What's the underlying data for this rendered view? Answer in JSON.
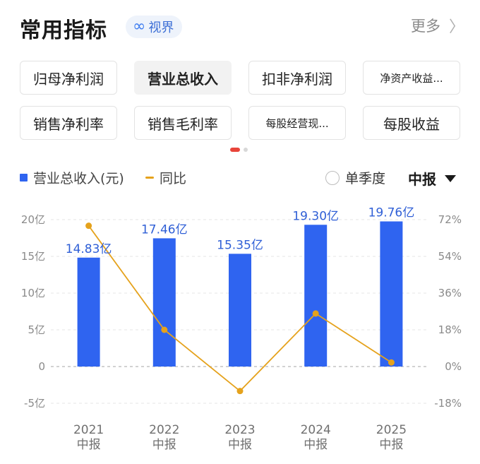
{
  "header": {
    "title": "常用指标",
    "vision_icon": "infinity-icon",
    "vision_symbol": "∞",
    "vision_label": "视界",
    "more_label": "更多",
    "more_chevron": "〉"
  },
  "metrics": {
    "row1": [
      "归母净利润",
      "营业总收入",
      "扣非净利润",
      "净资产收益..."
    ],
    "row2": [
      "销售净利率",
      "销售毛利率",
      "每股经营现...",
      "每股收益"
    ],
    "active": "营业总收入"
  },
  "legend": {
    "bar_label": "营业总收入(元)",
    "line_label": "同比",
    "single_quarter_label": "单季度",
    "period_label": "中报"
  },
  "colors": {
    "bar": "#2f64f0",
    "line": "#e5a21c",
    "value_label": "#2f5fd6",
    "active_dot": "#e8443a"
  },
  "chart_data": {
    "type": "bar",
    "categories": [
      {
        "year": "2021",
        "period": "中报"
      },
      {
        "year": "2022",
        "period": "中报"
      },
      {
        "year": "2023",
        "period": "中报"
      },
      {
        "year": "2024",
        "period": "中报"
      },
      {
        "year": "2025",
        "period": "中报"
      }
    ],
    "series": [
      {
        "name": "营业总收入(元)",
        "type": "bar",
        "axis": "left",
        "unit": "亿",
        "values": [
          14.83,
          17.46,
          15.35,
          19.3,
          19.76
        ],
        "labels": [
          "14.83亿",
          "17.46亿",
          "15.35亿",
          "19.30亿",
          "19.76亿"
        ]
      },
      {
        "name": "同比",
        "type": "line",
        "axis": "right",
        "unit": "%",
        "values": [
          69,
          18,
          -12,
          26,
          2
        ]
      }
    ],
    "left_axis": {
      "min": -5,
      "max": 20,
      "ticks": [
        20,
        15,
        10,
        5,
        0,
        -5
      ],
      "tick_labels": [
        "20亿",
        "15亿",
        "10亿",
        "5亿",
        "0",
        "-5亿"
      ]
    },
    "right_axis": {
      "min": -18,
      "max": 72,
      "ticks": [
        72,
        54,
        36,
        18,
        0,
        -18
      ],
      "tick_labels": [
        "72%",
        "54%",
        "36%",
        "18%",
        "0%",
        "-18%"
      ]
    },
    "grid": true
  }
}
